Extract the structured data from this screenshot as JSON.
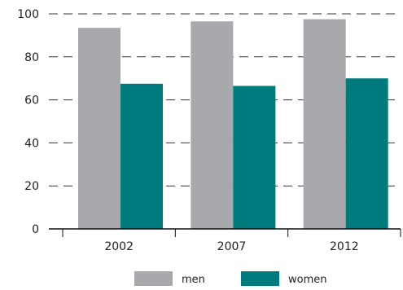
{
  "chart_data": {
    "type": "bar",
    "categories": [
      "2002",
      "2007",
      "2012"
    ],
    "series": [
      {
        "name": "men",
        "values": [
          93.5,
          96.5,
          97.5
        ],
        "color": "#a8a9ad"
      },
      {
        "name": "women",
        "values": [
          67.5,
          66.5,
          70
        ],
        "color": "#007b7d"
      }
    ],
    "ylim": [
      0,
      100
    ],
    "yticks": [
      0,
      20,
      40,
      60,
      80,
      100
    ],
    "grid": "dashed horizontal",
    "legend": "bottom",
    "title": "",
    "xlabel": "",
    "ylabel": ""
  }
}
